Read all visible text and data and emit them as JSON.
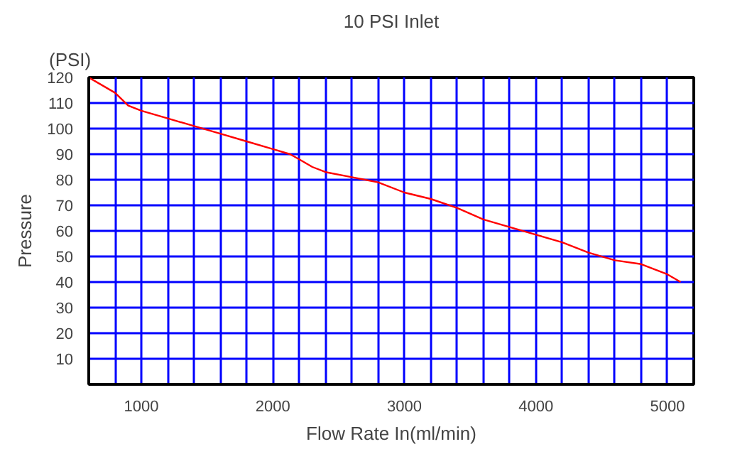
{
  "chart_data": {
    "type": "line",
    "title": "10 PSI Inlet",
    "xlabel": "Flow Rate In(ml/min)",
    "ylabel": "Pressure",
    "annotations": [
      "(PSI)"
    ],
    "x": [
      600,
      800,
      900,
      1000,
      1200,
      1400,
      1600,
      1800,
      2000,
      2130,
      2200,
      2300,
      2400,
      2600,
      2800,
      3000,
      3200,
      3400,
      3600,
      3800,
      4000,
      4200,
      4400,
      4600,
      4800,
      5000,
      5100
    ],
    "series": [
      {
        "color": "#ff0000",
        "values": [
          120,
          114,
          109,
          107,
          104,
          101,
          98,
          95,
          92,
          90,
          88,
          85,
          83,
          81,
          79,
          75,
          72.5,
          69,
          64.5,
          61.5,
          58.5,
          55.5,
          51.5,
          48.5,
          47,
          43,
          40
        ]
      }
    ],
    "xlim": [
      600,
      5200
    ],
    "xticks": [
      {
        "value": 800,
        "label": null
      },
      1000,
      {
        "value": 1200,
        "label": null
      },
      {
        "value": 1400,
        "label": null
      },
      {
        "value": 1600,
        "label": null
      },
      {
        "value": 1800,
        "label": null
      },
      2000,
      {
        "value": 2200,
        "label": null
      },
      {
        "value": 2400,
        "label": null
      },
      {
        "value": 2600,
        "label": null
      },
      {
        "value": 2800,
        "label": null
      },
      3000,
      {
        "value": 3200,
        "label": null
      },
      {
        "value": 3400,
        "label": null
      },
      {
        "value": 3600,
        "label": null
      },
      {
        "value": 3800,
        "label": null
      },
      4000,
      {
        "value": 4200,
        "label": null
      },
      {
        "value": 4400,
        "label": null
      },
      {
        "value": 4600,
        "label": null
      },
      {
        "value": 4800,
        "label": null
      },
      5000
    ],
    "ylim": [
      0,
      120
    ],
    "yticks": [
      10,
      20,
      30,
      40,
      50,
      60,
      70,
      80,
      90,
      100,
      110,
      120
    ],
    "grid": true,
    "marker": "none",
    "line_style": "solid"
  }
}
